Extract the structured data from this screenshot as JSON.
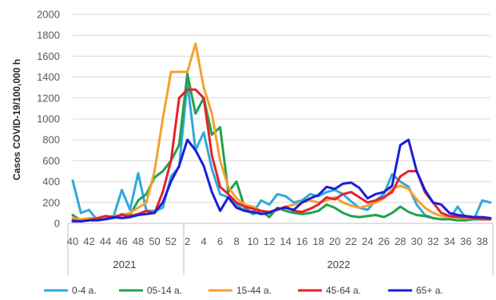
{
  "chart_data": {
    "type": "line",
    "ylabel": "Casos COVID-19/100,000 h",
    "ylim": [
      0,
      2000
    ],
    "yticks": [
      0,
      200,
      400,
      600,
      800,
      1000,
      1200,
      1400,
      1600,
      1800,
      2000
    ],
    "x_tick_labels": [
      "40",
      "42",
      "44",
      "46",
      "48",
      "50",
      "52",
      "2",
      "4",
      "6",
      "8",
      "10",
      "12",
      "14",
      "16",
      "18",
      "20",
      "22",
      "24",
      "26",
      "28",
      "30",
      "32",
      "34",
      "36",
      "38"
    ],
    "years": [
      {
        "label": "2021",
        "start_index": 0,
        "end_index": 12
      },
      {
        "label": "2022",
        "start_index": 13,
        "end_index": 50
      }
    ],
    "x_note": "52 points: weeks 40-52 of 2021 then weeks 1-39 of 2022",
    "series": [
      {
        "name": "0-4 a.",
        "color": "#2eaadc",
        "values": [
          410,
          100,
          130,
          30,
          60,
          70,
          320,
          130,
          480,
          120,
          120,
          150,
          450,
          540,
          1350,
          700,
          870,
          520,
          280,
          250,
          180,
          120,
          100,
          220,
          180,
          280,
          260,
          200,
          220,
          280,
          260,
          300,
          320,
          280,
          210,
          150,
          130,
          220,
          280,
          470,
          400,
          350,
          180,
          80,
          50,
          40,
          40,
          160,
          50,
          40,
          220,
          200
        ]
      },
      {
        "name": "05-14 a.",
        "color": "#22a14b",
        "values": [
          80,
          30,
          30,
          50,
          40,
          50,
          90,
          80,
          220,
          280,
          440,
          500,
          600,
          750,
          1430,
          1050,
          1200,
          850,
          920,
          300,
          400,
          150,
          90,
          120,
          60,
          150,
          120,
          100,
          90,
          100,
          120,
          180,
          150,
          100,
          70,
          60,
          70,
          80,
          60,
          100,
          160,
          110,
          80,
          70,
          50,
          40,
          40,
          30,
          30,
          40,
          40,
          40
        ]
      },
      {
        "name": "15-44 a.",
        "color": "#f5a031",
        "values": [
          50,
          40,
          50,
          50,
          60,
          70,
          80,
          100,
          150,
          200,
          500,
          1000,
          1450,
          1450,
          1450,
          1720,
          1300,
          1050,
          600,
          350,
          240,
          180,
          160,
          120,
          100,
          130,
          160,
          180,
          200,
          220,
          200,
          220,
          250,
          200,
          170,
          150,
          170,
          200,
          240,
          330,
          360,
          330,
          230,
          150,
          100,
          70,
          60,
          60,
          50,
          50,
          40,
          40
        ]
      },
      {
        "name": "45-64 a.",
        "color": "#e4232d",
        "values": [
          30,
          20,
          30,
          50,
          70,
          60,
          80,
          70,
          90,
          120,
          100,
          300,
          600,
          1200,
          1280,
          1280,
          1200,
          650,
          350,
          280,
          200,
          160,
          140,
          120,
          110,
          130,
          160,
          120,
          110,
          140,
          180,
          250,
          230,
          280,
          300,
          250,
          200,
          220,
          250,
          300,
          450,
          500,
          500,
          300,
          200,
          100,
          70,
          60,
          60,
          50,
          40,
          40
        ]
      },
      {
        "name": "65+ a.",
        "color": "#1b1fd6",
        "values": [
          20,
          20,
          30,
          30,
          40,
          60,
          50,
          60,
          80,
          90,
          100,
          200,
          400,
          550,
          800,
          700,
          550,
          300,
          120,
          250,
          150,
          120,
          110,
          90,
          100,
          140,
          150,
          130,
          200,
          240,
          270,
          350,
          330,
          380,
          390,
          340,
          240,
          280,
          300,
          360,
          750,
          800,
          500,
          320,
          200,
          180,
          100,
          80,
          70,
          60,
          60,
          50
        ]
      }
    ]
  }
}
